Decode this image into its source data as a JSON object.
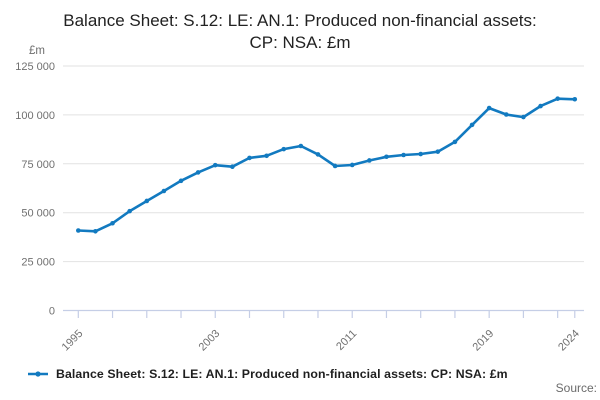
{
  "title": "Balance Sheet: S.12: LE: AN.1: Produced non-financial assets: CP: NSA: £m",
  "y_axis": {
    "unit_label": "£m",
    "ticks": [
      {
        "value": 0,
        "label": "0"
      },
      {
        "value": 25000,
        "label": "25 000"
      },
      {
        "value": 50000,
        "label": "50 000"
      },
      {
        "value": 75000,
        "label": "75 000"
      },
      {
        "value": 100000,
        "label": "100 000"
      },
      {
        "value": 125000,
        "label": "125 000"
      }
    ]
  },
  "x_axis": {
    "tick_years": [
      1995,
      1997,
      1999,
      2001,
      2003,
      2005,
      2007,
      2009,
      2011,
      2013,
      2015,
      2017,
      2019,
      2021,
      2023,
      2024
    ],
    "labeled_years": [
      1995,
      2003,
      2011,
      2019,
      2024
    ]
  },
  "chart_data": {
    "type": "line",
    "title": "Balance Sheet: S.12: LE: AN.1: Produced non-financial assets: CP: NSA: £m",
    "xlabel": "",
    "ylabel": "£m",
    "ylim": [
      0,
      125000
    ],
    "grid": "horizontal",
    "legend_position": "bottom",
    "x": [
      1995,
      1996,
      1997,
      1998,
      1999,
      2000,
      2001,
      2002,
      2003,
      2004,
      2005,
      2006,
      2007,
      2008,
      2009,
      2010,
      2011,
      2012,
      2013,
      2014,
      2015,
      2016,
      2017,
      2018,
      2019,
      2020,
      2021,
      2022,
      2023,
      2024
    ],
    "series": [
      {
        "name": "Balance Sheet: S.12: LE: AN.1: Produced non-financial assets: CP: NSA: £m",
        "values": [
          40900,
          40500,
          44600,
          50800,
          56000,
          61100,
          66300,
          70600,
          74300,
          73500,
          78000,
          79100,
          82500,
          84100,
          79800,
          73900,
          74400,
          76700,
          78600,
          79500,
          80000,
          81200,
          86200,
          94900,
          103500,
          100200,
          98900,
          104500,
          108300,
          108000
        ]
      }
    ],
    "colors": {
      "line": "#127ac0",
      "grid": "#e2e2e2",
      "axis": "#c5cee6",
      "tick_label": "#707070"
    }
  },
  "legend": {
    "label": "Balance Sheet: S.12: LE: AN.1: Produced non-financial assets: CP: NSA: £m"
  },
  "footer": {
    "source_label": "Source:"
  }
}
